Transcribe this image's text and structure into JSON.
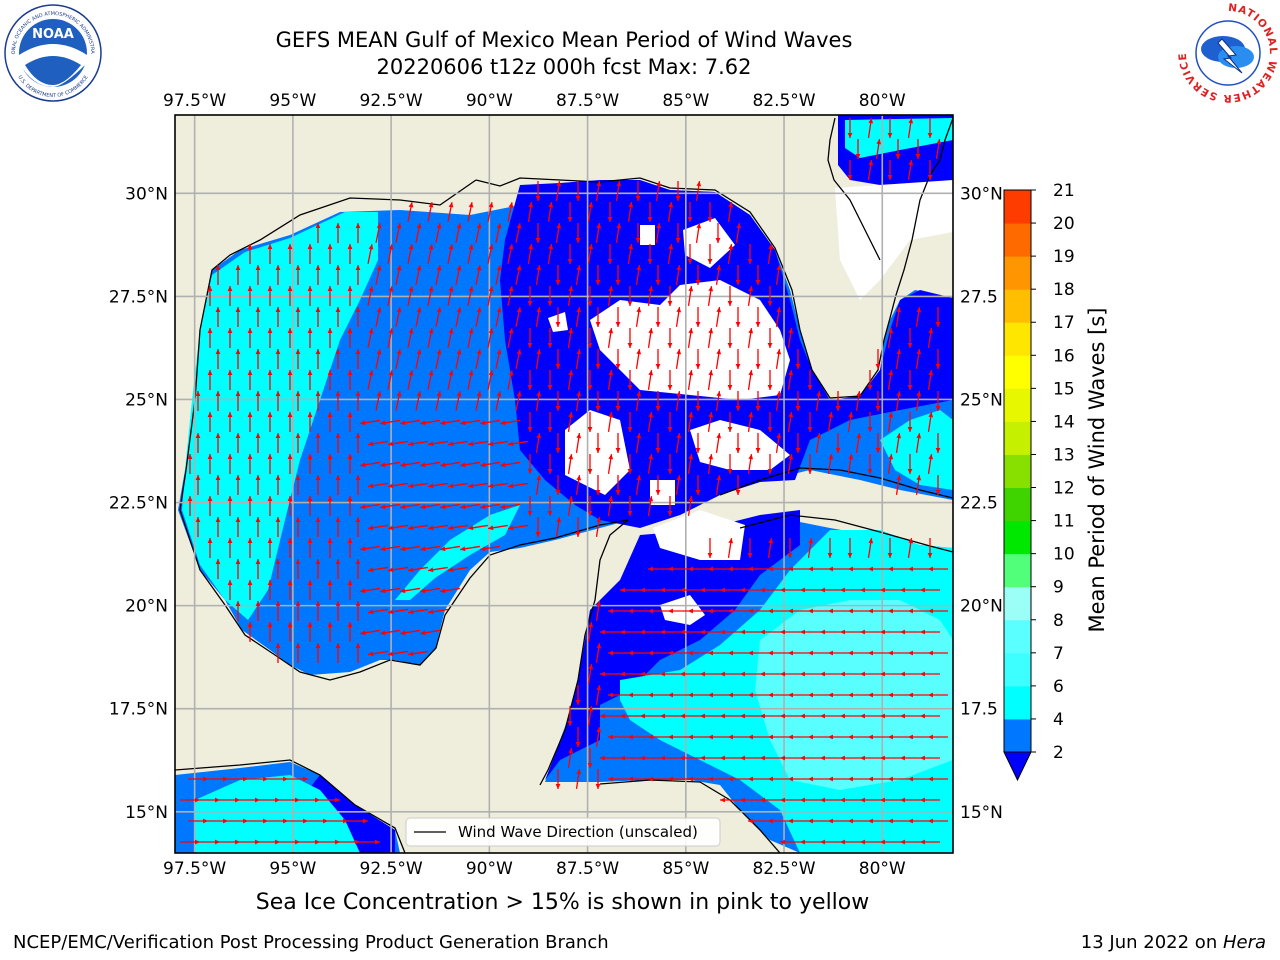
{
  "header": {
    "title_line1": "GEFS MEAN Gulf of Mexico Mean Period of Wind Waves",
    "title_line2": "20220606 t12z 000h fcst   Max: 7.62"
  },
  "logos": {
    "noaa_text": "NOAA",
    "noaa_ring_top": "NATIONAL OCEANIC AND ATMOSPHERIC ADMINISTRATION",
    "noaa_ring_bottom": "U.S. DEPARTMENT OF COMMERCE",
    "nws_ring": "NATIONAL WEATHER SERVICE"
  },
  "map": {
    "lon_ticks": [
      "97.5°W",
      "95°W",
      "92.5°W",
      "90°W",
      "87.5°W",
      "85°W",
      "82.5°W",
      "80°W"
    ],
    "lon_values": [
      -97.5,
      -95,
      -92.5,
      -90,
      -87.5,
      -85,
      -82.5,
      -80
    ],
    "lat_ticks_left": [
      "30°N",
      "27.5°N",
      "25°N",
      "22.5°N",
      "20°N",
      "17.5°N",
      "15°N"
    ],
    "lat_ticks_right": [
      "30°N",
      "27.5",
      "25°N",
      "22.5",
      "20°N",
      "17.5",
      "15°N"
    ],
    "lat_values": [
      30,
      27.5,
      25,
      22.5,
      20,
      17.5,
      15
    ],
    "extent": {
      "lon_min": -98,
      "lon_max": -78.2,
      "lat_min": 14,
      "lat_max": 31.9
    },
    "legend_label": "Wind Wave Direction (unscaled)",
    "colors": {
      "land": "#efeedd",
      "period_2_4": "#0077ff",
      "period_4_6": "#00ffff",
      "period_6_8": "#59ffff",
      "period_8_9": "#9cfffa",
      "below_2": "#0000ff",
      "arrow": "#ff0000",
      "coast": "#000000",
      "grid": "#b0b0b0"
    }
  },
  "colorbar": {
    "label": "Mean Period of Wind Waves [s]",
    "ticks": [
      "2",
      "4",
      "6",
      "7",
      "8",
      "9",
      "10",
      "11",
      "12",
      "13",
      "14",
      "15",
      "16",
      "17",
      "18",
      "19",
      "20",
      "21"
    ],
    "colors": [
      "#0077ff",
      "#00ffff",
      "#3dffff",
      "#5affff",
      "#9bfff8",
      "#52ff7a",
      "#00e800",
      "#3fd400",
      "#88e000",
      "#c5f000",
      "#e6f700",
      "#ffff00",
      "#ffe600",
      "#ffbf00",
      "#ff9500",
      "#ff6a00",
      "#ff3c00",
      "#ff0000"
    ],
    "extend_color": "#0000ff"
  },
  "notes": {
    "ice_note": "Sea Ice Concentration > 15% is shown in pink to yellow",
    "footer_left": "NCEP/EMC/Verification Post Processing Product Generation Branch",
    "footer_date": "13 Jun 2022 on ",
    "footer_machine": "Hera"
  }
}
